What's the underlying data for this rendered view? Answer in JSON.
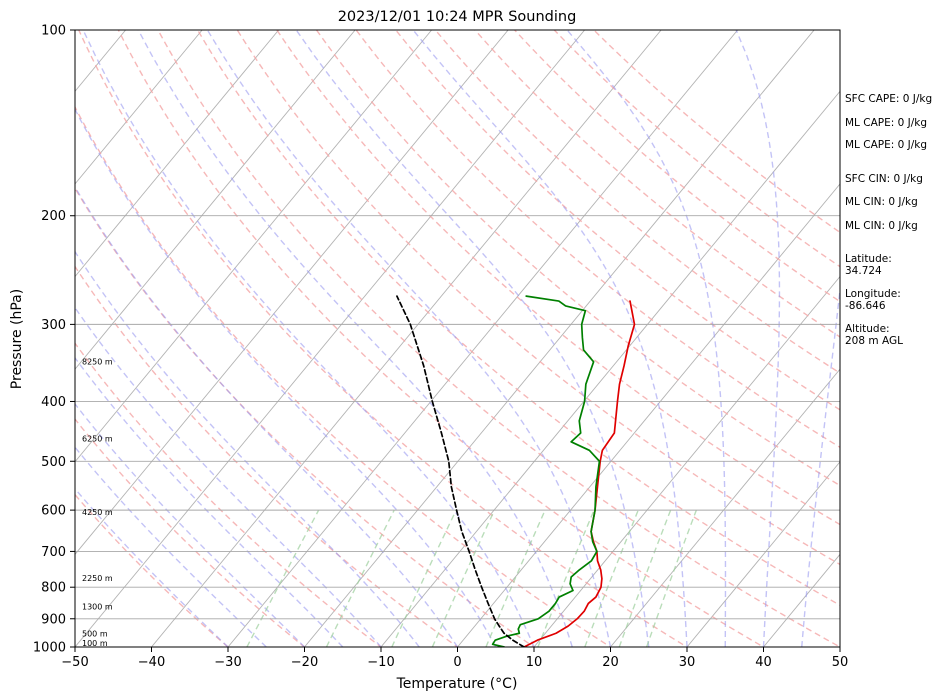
{
  "chart_data": {
    "type": "line",
    "title": "2023/12/01 10:24 MPR Sounding",
    "xlabel": "Temperature (°C)",
    "ylabel": "Pressure (hPa)",
    "xlim": [
      -50,
      50
    ],
    "ylim": [
      1000,
      100
    ],
    "y_scale": "log",
    "grid": true,
    "x_ticks": [
      -50,
      -40,
      -30,
      -20,
      -10,
      0,
      10,
      20,
      30,
      40,
      50
    ],
    "y_ticks": [
      1000,
      900,
      800,
      700,
      600,
      500,
      400,
      300,
      200,
      100
    ],
    "series": [
      {
        "kind": "temperature",
        "color": "#e00000",
        "points": [
          [
            1000,
            8.7
          ],
          [
            975,
            9.7
          ],
          [
            950,
            11.4
          ],
          [
            925,
            12.2
          ],
          [
            900,
            12.6
          ],
          [
            875,
            12.7
          ],
          [
            850,
            12.4
          ],
          [
            830,
            12.7
          ],
          [
            800,
            12.3
          ],
          [
            775,
            11.5
          ],
          [
            750,
            10.4
          ],
          [
            725,
            9.0
          ],
          [
            700,
            7.9
          ],
          [
            675,
            6.4
          ],
          [
            650,
            5.0
          ],
          [
            600,
            3.2
          ],
          [
            550,
            1.0
          ],
          [
            500,
            -1.4
          ],
          [
            480,
            -2.3
          ],
          [
            450,
            -2.6
          ],
          [
            400,
            -5.6
          ],
          [
            375,
            -7.2
          ],
          [
            350,
            -8.6
          ],
          [
            325,
            -10.2
          ],
          [
            300,
            -11.7
          ],
          [
            275,
            -14.8
          ]
        ]
      },
      {
        "kind": "dewpoint",
        "color": "#008000",
        "points": [
          [
            1000,
            6.1
          ],
          [
            990,
            4.3
          ],
          [
            975,
            4.2
          ],
          [
            960,
            5.3
          ],
          [
            950,
            6.6
          ],
          [
            935,
            6.0
          ],
          [
            920,
            5.8
          ],
          [
            900,
            7.5
          ],
          [
            875,
            8.1
          ],
          [
            850,
            8.1
          ],
          [
            830,
            7.9
          ],
          [
            810,
            9.0
          ],
          [
            790,
            7.9
          ],
          [
            770,
            7.3
          ],
          [
            750,
            7.6
          ],
          [
            725,
            8.2
          ],
          [
            700,
            7.9
          ],
          [
            675,
            6.3
          ],
          [
            650,
            5.0
          ],
          [
            600,
            3.2
          ],
          [
            550,
            0.8
          ],
          [
            500,
            -1.5
          ],
          [
            480,
            -4.0
          ],
          [
            465,
            -7.3
          ],
          [
            450,
            -7.0
          ],
          [
            430,
            -8.5
          ],
          [
            400,
            -9.9
          ],
          [
            375,
            -11.6
          ],
          [
            345,
            -13.0
          ],
          [
            330,
            -15.6
          ],
          [
            315,
            -17.1
          ],
          [
            300,
            -18.6
          ],
          [
            285,
            -19.6
          ],
          [
            280,
            -22.7
          ],
          [
            275,
            -24.1
          ],
          [
            270,
            -28.9
          ]
        ]
      },
      {
        "kind": "parcel",
        "color": "#000000",
        "points": [
          [
            1000,
            8.7
          ],
          [
            975,
            6.5
          ],
          [
            950,
            4.6
          ],
          [
            925,
            3.2
          ],
          [
            900,
            1.8
          ],
          [
            850,
            -0.7
          ],
          [
            800,
            -3.3
          ],
          [
            750,
            -6.0
          ],
          [
            700,
            -8.8
          ],
          [
            650,
            -11.9
          ],
          [
            600,
            -14.9
          ],
          [
            550,
            -18.1
          ],
          [
            500,
            -21.2
          ],
          [
            450,
            -25.2
          ],
          [
            400,
            -29.8
          ],
          [
            350,
            -34.8
          ],
          [
            300,
            -41.0
          ],
          [
            270,
            -45.8
          ]
        ]
      }
    ],
    "background_lines": {
      "isotherms_c": [
        -140,
        -130,
        -120,
        -110,
        -100,
        -90,
        -80,
        -70,
        -60,
        -50,
        -40,
        -30,
        -20,
        -10,
        0,
        10,
        20,
        30,
        40,
        50
      ],
      "dry_adiabats_c": [
        -30,
        -20,
        -10,
        0,
        10,
        20,
        30,
        40,
        50,
        60,
        70,
        80,
        90,
        100,
        110,
        120,
        130,
        140,
        150,
        160
      ],
      "moist_adiabats_c": [
        -30,
        -25,
        -20,
        -15,
        -10,
        -5,
        0,
        5,
        10,
        15,
        20,
        25,
        30,
        35,
        40,
        45
      ],
      "mixing_ratio_gkg": [
        0.4,
        1,
        2,
        3,
        5,
        8,
        12,
        16,
        20
      ]
    },
    "height_labels": [
      {
        "p": 1000,
        "label": "100 m"
      },
      {
        "p": 965,
        "label": "500 m"
      },
      {
        "p": 872,
        "label": "1300 m"
      },
      {
        "p": 785,
        "label": "2250 m"
      },
      {
        "p": 613,
        "label": "4250 m"
      },
      {
        "p": 466,
        "label": "6250 m"
      },
      {
        "p": 350,
        "label": "8250 m"
      }
    ],
    "annotations": [
      "SFC CAPE: 0 J/kg",
      "ML CAPE: 0 J/kg",
      "ML CAPE: 0 J/kg",
      "SFC CIN: 0 J/kg",
      "ML CIN: 0 J/kg",
      "ML CIN: 0 J/kg"
    ],
    "location": {
      "latitude_label": "Latitude:",
      "latitude": "34.724",
      "longitude_label": "Longitude:",
      "longitude": "-86.646",
      "altitude_label": "Altitude:",
      "altitude": "208 m AGL"
    }
  }
}
